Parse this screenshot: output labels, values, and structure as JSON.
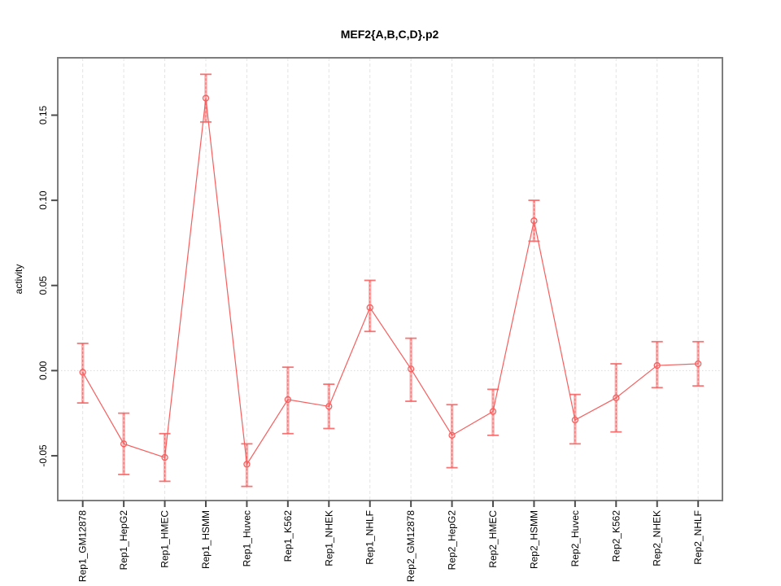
{
  "title": "MEF2{A,B,C,D}.p2",
  "chart_data": {
    "type": "line",
    "title": "MEF2{A,B,C,D}.p2",
    "xlabel": "",
    "ylabel": "activity",
    "legend": "none",
    "grid": "vertical dashed gridlines at each category; dotted horizontal line at y=0",
    "marker": "open-circle",
    "error_bars": true,
    "categories": [
      "Rep1_GM12878",
      "Rep1_HepG2",
      "Rep1_HMEC",
      "Rep1_HSMM",
      "Rep1_Huvec",
      "Rep1_K562",
      "Rep1_NHEK",
      "Rep1_NHLF",
      "Rep2_GM12878",
      "Rep2_HepG2",
      "Rep2_HMEC",
      "Rep2_HSMM",
      "Rep2_Huvec",
      "Rep2_K562",
      "Rep2_NHEK",
      "Rep2_NHLF"
    ],
    "series": [
      {
        "name": "activity",
        "values": [
          -0.001,
          -0.043,
          -0.051,
          0.16,
          -0.055,
          -0.017,
          -0.021,
          0.037,
          0.001,
          -0.038,
          -0.024,
          0.088,
          -0.029,
          -0.016,
          0.003,
          0.004
        ],
        "ci_low": [
          -0.019,
          -0.061,
          -0.065,
          0.146,
          -0.068,
          -0.037,
          -0.034,
          0.023,
          -0.018,
          -0.057,
          -0.038,
          0.076,
          -0.043,
          -0.036,
          -0.01,
          -0.009
        ],
        "ci_high": [
          0.016,
          -0.025,
          -0.037,
          0.174,
          -0.043,
          0.002,
          -0.008,
          0.053,
          0.019,
          -0.02,
          -0.011,
          0.1,
          -0.014,
          0.004,
          0.017,
          0.017
        ]
      }
    ],
    "yticks": [
      -0.05,
      0.0,
      0.05,
      0.1,
      0.15
    ],
    "ytick_labels": [
      "-0.05",
      "0.00",
      "0.05",
      "0.10",
      "0.15"
    ],
    "ylim": [
      -0.0763,
      0.1837
    ],
    "colors": {
      "series": "#f75e5e",
      "error_band": "#f9a8a8",
      "gridline": "#e3e3e3",
      "zero_line": "#d9d9d9",
      "box": "#7d7d7d",
      "tick": "#4d4d4d",
      "background": "#ffffff"
    }
  }
}
